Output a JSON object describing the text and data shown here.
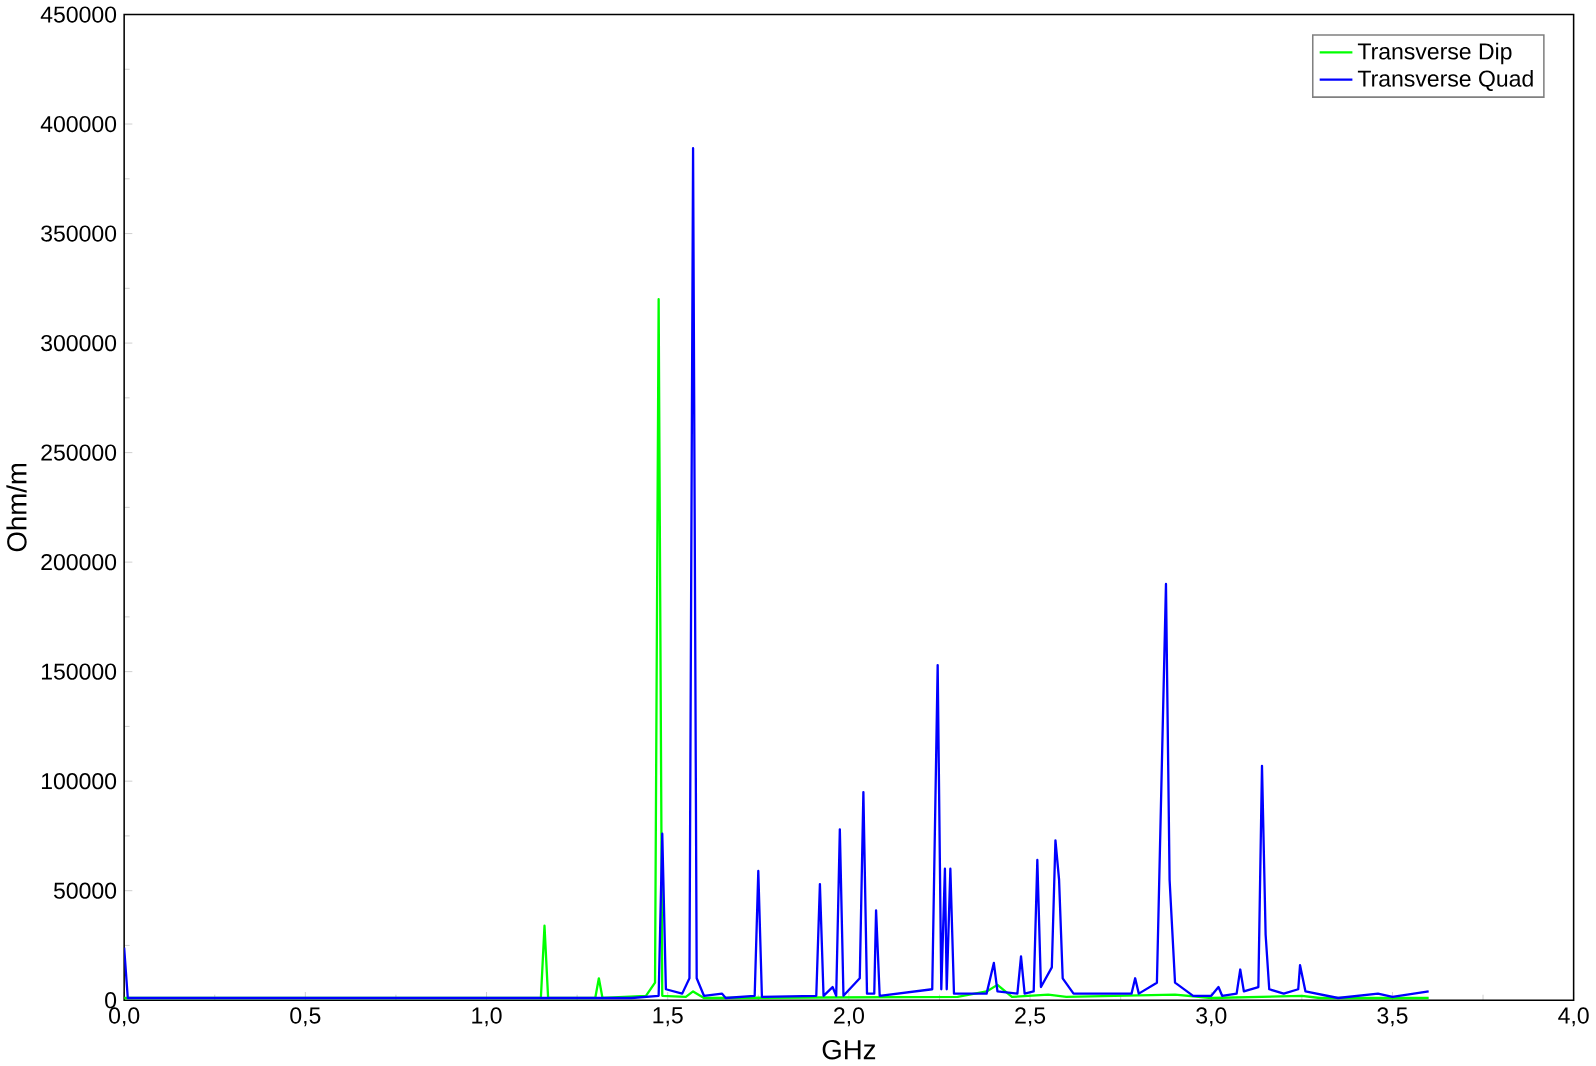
{
  "chart_data": {
    "type": "line",
    "xlabel": "GHz",
    "ylabel": "Ohm/m",
    "xlim": [
      0,
      4.0
    ],
    "xticks": [
      {
        "value": 0,
        "label": "0,0"
      },
      {
        "value": 0.5,
        "label": "0,5"
      },
      {
        "value": 1.0,
        "label": "1,0"
      },
      {
        "value": 1.5,
        "label": "1,5"
      },
      {
        "value": 2.0,
        "label": "2,0"
      },
      {
        "value": 2.5,
        "label": "2,5"
      },
      {
        "value": 3.0,
        "label": "3,0"
      },
      {
        "value": 3.5,
        "label": "3,5"
      },
      {
        "value": 4.0,
        "label": "4,0"
      }
    ],
    "ylim": [
      0,
      450000
    ],
    "yticks": [
      0,
      50000,
      100000,
      150000,
      200000,
      250000,
      300000,
      350000,
      400000,
      450000
    ],
    "legend": "top right",
    "grid": false,
    "marker": "none",
    "line_style": "solid",
    "series": [
      {
        "name": "Transverse Dip",
        "color": "#00ff00",
        "x": [
          0,
          1.15,
          1.16,
          1.17,
          1.3,
          1.31,
          1.32,
          1.44,
          1.465,
          1.475,
          1.485,
          1.55,
          1.57,
          1.6,
          2.3,
          2.38,
          2.41,
          2.45,
          2.55,
          2.6,
          2.9,
          3.0,
          3.25,
          3.3,
          3.6
        ],
        "values": [
          1000,
          1000,
          34000,
          1000,
          1000,
          10000,
          1000,
          2000,
          8000,
          320000,
          2000,
          1500,
          4000,
          1000,
          1500,
          4000,
          7000,
          1500,
          2500,
          1500,
          2500,
          1000,
          2000,
          1000,
          1000
        ]
      },
      {
        "name": "Transverse Quad",
        "color": "#0000ff",
        "x": [
          0,
          0.01,
          1.4,
          1.475,
          1.485,
          1.495,
          1.54,
          1.56,
          1.57,
          1.58,
          1.6,
          1.65,
          1.66,
          1.74,
          1.75,
          1.76,
          1.91,
          1.92,
          1.93,
          1.955,
          1.965,
          1.975,
          1.985,
          2.03,
          2.04,
          2.05,
          2.07,
          2.075,
          2.085,
          2.23,
          2.245,
          2.255,
          2.265,
          2.27,
          2.28,
          2.29,
          2.38,
          2.4,
          2.41,
          2.465,
          2.475,
          2.485,
          2.51,
          2.52,
          2.53,
          2.56,
          2.57,
          2.58,
          2.59,
          2.62,
          2.78,
          2.79,
          2.8,
          2.85,
          2.875,
          2.885,
          2.9,
          2.95,
          3.0,
          3.02,
          3.03,
          3.07,
          3.08,
          3.09,
          3.13,
          3.14,
          3.15,
          3.16,
          3.2,
          3.24,
          3.245,
          3.26,
          3.35,
          3.46,
          3.5,
          3.6
        ],
        "values": [
          24000,
          1000,
          1000,
          2000,
          76000,
          5000,
          3000,
          10000,
          389000,
          10000,
          2000,
          3000,
          1000,
          2000,
          59000,
          1500,
          2000,
          53000,
          2000,
          6000,
          2000,
          78000,
          2000,
          10000,
          95000,
          3000,
          3000,
          41000,
          2000,
          5000,
          153000,
          5000,
          60000,
          5000,
          60000,
          3000,
          3000,
          17000,
          4000,
          3000,
          20000,
          3000,
          4000,
          64000,
          6000,
          15000,
          73000,
          55000,
          10000,
          3000,
          3000,
          10000,
          3000,
          8000,
          190000,
          55000,
          8000,
          2000,
          2000,
          6000,
          2000,
          3000,
          14000,
          4000,
          6000,
          107000,
          30000,
          5000,
          3000,
          5000,
          16000,
          4000,
          1000,
          3000,
          1500,
          4000
        ]
      }
    ]
  }
}
